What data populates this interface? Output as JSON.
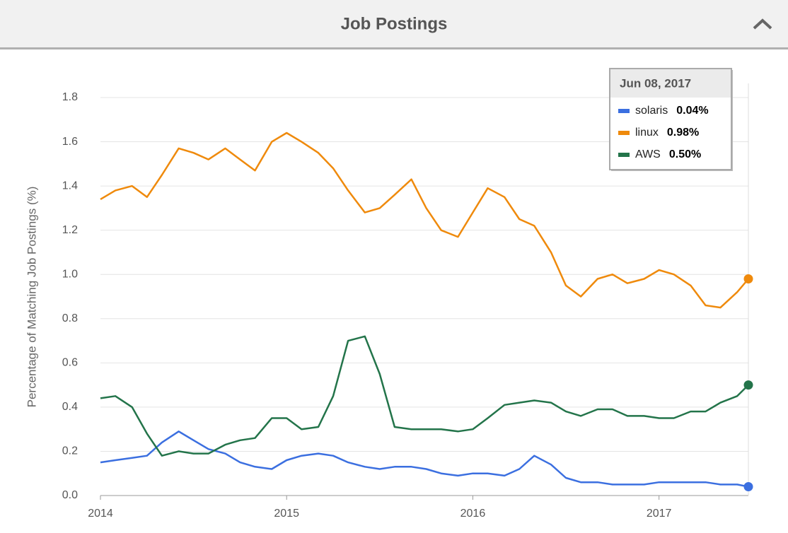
{
  "header": {
    "title": "Job Postings"
  },
  "chart_data": {
    "type": "line",
    "y_label": "Percentage of Matching Job Postings (%)",
    "x": [
      2014.0,
      2014.08,
      2014.17,
      2014.25,
      2014.33,
      2014.42,
      2014.5,
      2014.58,
      2014.67,
      2014.75,
      2014.83,
      2014.92,
      2015.0,
      2015.08,
      2015.17,
      2015.25,
      2015.33,
      2015.42,
      2015.5,
      2015.58,
      2015.67,
      2015.75,
      2015.83,
      2015.92,
      2016.0,
      2016.08,
      2016.17,
      2016.25,
      2016.33,
      2016.42,
      2016.5,
      2016.58,
      2016.67,
      2016.75,
      2016.83,
      2016.92,
      2017.0,
      2017.08,
      2017.17,
      2017.25,
      2017.33,
      2017.42,
      2017.48
    ],
    "series": [
      {
        "name": "solaris",
        "color": "#3b6fe0",
        "values": [
          0.15,
          0.16,
          0.17,
          0.18,
          0.24,
          0.29,
          0.25,
          0.21,
          0.19,
          0.15,
          0.13,
          0.12,
          0.16,
          0.18,
          0.19,
          0.18,
          0.15,
          0.13,
          0.12,
          0.13,
          0.13,
          0.12,
          0.1,
          0.09,
          0.1,
          0.1,
          0.09,
          0.12,
          0.18,
          0.14,
          0.08,
          0.06,
          0.06,
          0.05,
          0.05,
          0.05,
          0.06,
          0.06,
          0.06,
          0.06,
          0.05,
          0.05,
          0.04
        ]
      },
      {
        "name": "linux",
        "color": "#ef8a0c",
        "values": [
          1.34,
          1.38,
          1.4,
          1.35,
          1.45,
          1.57,
          1.55,
          1.52,
          1.57,
          1.52,
          1.47,
          1.6,
          1.64,
          1.6,
          1.55,
          1.48,
          1.38,
          1.28,
          1.3,
          1.36,
          1.43,
          1.3,
          1.2,
          1.17,
          1.28,
          1.39,
          1.35,
          1.25,
          1.22,
          1.1,
          0.95,
          0.9,
          0.98,
          1.0,
          0.96,
          0.98,
          1.02,
          1.0,
          0.95,
          0.86,
          0.85,
          0.92,
          0.98
        ]
      },
      {
        "name": "AWS",
        "color": "#23744a",
        "values": [
          0.44,
          0.45,
          0.4,
          0.28,
          0.18,
          0.2,
          0.19,
          0.19,
          0.23,
          0.25,
          0.26,
          0.35,
          0.35,
          0.3,
          0.31,
          0.45,
          0.7,
          0.72,
          0.55,
          0.31,
          0.3,
          0.3,
          0.3,
          0.29,
          0.3,
          0.35,
          0.41,
          0.42,
          0.43,
          0.42,
          0.38,
          0.36,
          0.39,
          0.39,
          0.36,
          0.36,
          0.35,
          0.35,
          0.38,
          0.38,
          0.42,
          0.45,
          0.5
        ]
      }
    ],
    "xlim": [
      2014,
      2017.48
    ],
    "xticks": [
      2014,
      2015,
      2016,
      2017
    ],
    "ylim": [
      0,
      1.8
    ],
    "yticks": [
      {
        "value": 0,
        "label": "0.0"
      },
      0.2,
      0.4,
      0.6,
      0.8,
      {
        "value": 1,
        "label": "1.0"
      },
      1.2,
      1.4,
      1.6,
      1.8
    ],
    "grid": true,
    "tooltip": {
      "title": "Jun 08, 2017",
      "values": [
        "0.04%",
        "0.98%",
        "0.50%"
      ]
    }
  }
}
